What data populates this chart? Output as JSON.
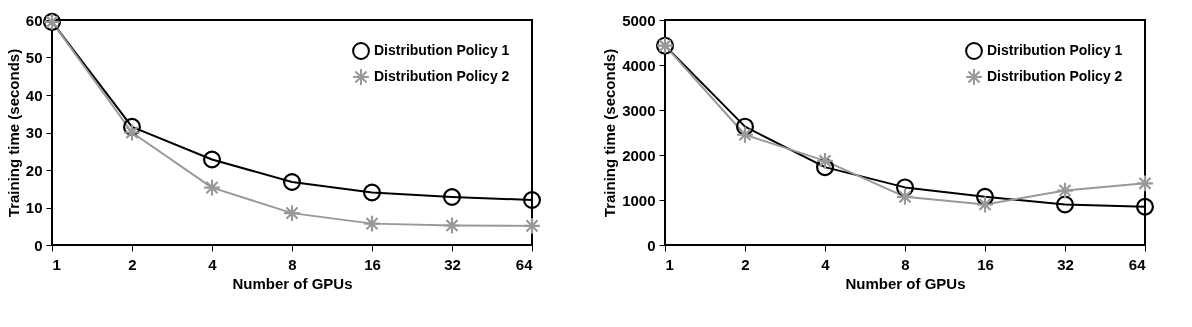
{
  "chart_data": [
    {
      "type": "line",
      "xlabel": "Number of GPUs",
      "ylabel": "Training time (seconds)",
      "categories": [
        "1",
        "2",
        "4",
        "8",
        "16",
        "32",
        "64"
      ],
      "ylim": [
        0,
        60
      ],
      "yticks": [
        0,
        10,
        20,
        30,
        40,
        50,
        60
      ],
      "grid": false,
      "legend": "top right",
      "line_style": "solid",
      "series": [
        {
          "name": "Distribution Policy 1",
          "color": "#000000",
          "marker": "circle",
          "values": [
            59.5,
            31.5,
            22.8,
            16.8,
            14,
            12.8,
            12
          ]
        },
        {
          "name": "Distribution Policy 2",
          "color": "#999999",
          "marker": "cross",
          "values": [
            59.5,
            30,
            15.3,
            8.5,
            5.7,
            5.2,
            5.1
          ]
        }
      ]
    },
    {
      "type": "line",
      "xlabel": "Number of GPUs",
      "ylabel": "Training time (seconds)",
      "categories": [
        "1",
        "2",
        "4",
        "8",
        "16",
        "32",
        "64"
      ],
      "ylim": [
        0,
        5000
      ],
      "yticks": [
        0,
        1000,
        2000,
        3000,
        4000,
        5000
      ],
      "grid": false,
      "legend": "top right",
      "line_style": "solid",
      "series": [
        {
          "name": "Distribution Policy 1",
          "color": "#000000",
          "marker": "circle",
          "values": [
            4430,
            2630,
            1730,
            1280,
            1070,
            900,
            850
          ]
        },
        {
          "name": "Distribution Policy 2",
          "color": "#999999",
          "marker": "cross",
          "values": [
            4430,
            2450,
            1870,
            1070,
            900,
            1210,
            1370
          ]
        }
      ]
    }
  ]
}
